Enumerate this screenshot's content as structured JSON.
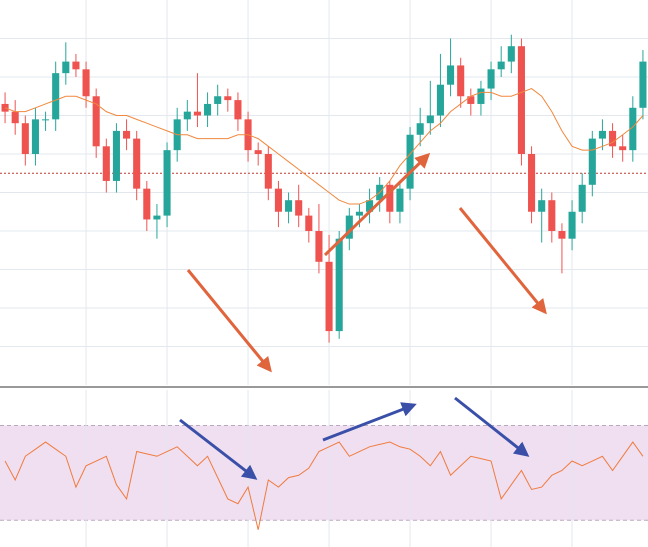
{
  "chart_data": [
    {
      "type": "candlestick",
      "grid": true,
      "up_color": "#26a69a",
      "down_color": "#ef5350",
      "xlim": [
        -0.5,
        63.5
      ],
      "xticks": [
        8,
        16,
        24,
        32,
        40,
        48,
        56
      ],
      "ylim": [
        0,
        100
      ],
      "yticks": [
        10,
        20,
        30,
        40,
        50,
        60,
        70,
        80,
        90
      ],
      "reference_line": 55,
      "reference_color": "#c0392b",
      "open": [
        73,
        71,
        68,
        60,
        69,
        69,
        81,
        84,
        82,
        75,
        62,
        53,
        66,
        64,
        51,
        43,
        44,
        61,
        69,
        71,
        70,
        73,
        75,
        74,
        69,
        61,
        60,
        51,
        45,
        48,
        44,
        40,
        32,
        14,
        38,
        44,
        45,
        48,
        52,
        45,
        51,
        65,
        68,
        70,
        78,
        83,
        75,
        73,
        77,
        82,
        84,
        88,
        60,
        45,
        48,
        40,
        38,
        45,
        52,
        64,
        66,
        62,
        61,
        72
      ],
      "high": [
        76,
        74,
        70,
        72,
        71,
        84,
        89,
        86,
        84,
        77,
        64,
        68,
        69,
        66,
        53,
        47,
        63,
        72,
        74,
        81,
        76,
        78,
        77,
        76,
        71,
        63,
        62,
        53,
        50,
        52,
        46,
        47,
        39,
        40,
        46,
        47,
        51,
        54,
        53,
        53,
        67,
        72,
        79,
        86,
        90,
        85,
        77,
        79,
        84,
        88,
        91,
        90,
        62,
        51,
        50,
        42,
        48,
        55,
        66,
        69,
        68,
        65,
        75,
        87
      ],
      "low": [
        68,
        65,
        57,
        57,
        66,
        66,
        78,
        80,
        72,
        59,
        50,
        50,
        61,
        48,
        40,
        38,
        41,
        58,
        66,
        67,
        67,
        70,
        71,
        66,
        58,
        57,
        48,
        41,
        42,
        41,
        37,
        29,
        11,
        12,
        35,
        41,
        42,
        45,
        42,
        42,
        48,
        62,
        65,
        67,
        75,
        72,
        70,
        70,
        74,
        80,
        81,
        57,
        42,
        37,
        37,
        29,
        35,
        42,
        49,
        61,
        59,
        58,
        58,
        69
      ],
      "close": [
        71,
        68,
        60,
        69,
        69,
        81,
        84,
        82,
        75,
        62,
        53,
        66,
        64,
        51,
        43,
        44,
        61,
        69,
        71,
        70,
        73,
        75,
        74,
        69,
        61,
        60,
        51,
        45,
        48,
        44,
        40,
        32,
        14,
        38,
        44,
        45,
        48,
        52,
        45,
        51,
        65,
        68,
        70,
        78,
        83,
        75,
        73,
        77,
        82,
        84,
        88,
        60,
        45,
        48,
        40,
        38,
        45,
        52,
        64,
        66,
        62,
        61,
        72,
        84
      ],
      "series": [
        {
          "color": "#f0883e",
          "values": [
            72,
            71,
            71,
            72,
            73,
            74,
            75,
            75,
            74,
            73,
            71,
            70,
            70,
            69,
            68,
            67,
            66,
            65,
            65,
            64,
            64,
            64,
            64,
            65,
            65,
            64,
            62,
            60,
            58,
            56,
            54,
            52,
            50,
            48,
            47,
            47,
            48,
            50,
            53,
            57,
            60,
            63,
            66,
            68,
            71,
            73,
            75,
            76,
            76,
            75,
            75,
            76,
            77,
            75,
            71,
            66,
            62,
            61,
            61,
            62,
            63,
            65,
            67,
            70
          ]
        }
      ]
    },
    {
      "type": "line",
      "grid": true,
      "color": "#f07b3f",
      "band": [
        30,
        70
      ],
      "band_color": "#efdff0",
      "xlim": [
        -0.5,
        63.5
      ],
      "xticks": [
        8,
        16,
        24,
        32,
        40,
        48,
        56
      ],
      "ylim": [
        20,
        82
      ],
      "values": [
        55,
        47,
        57,
        60,
        63,
        60,
        57,
        44,
        53,
        55,
        57,
        45,
        39,
        59,
        58,
        57,
        59,
        61,
        57,
        53,
        57,
        48,
        39,
        37,
        44,
        26,
        47,
        44,
        48,
        49,
        52,
        59,
        61,
        63,
        57,
        59,
        61,
        62,
        63,
        61,
        60,
        57,
        53,
        59,
        49,
        53,
        57,
        56,
        55,
        39,
        45,
        51,
        43,
        44,
        49,
        51,
        55,
        53,
        55,
        57,
        51,
        57,
        63,
        57
      ]
    }
  ]
}
